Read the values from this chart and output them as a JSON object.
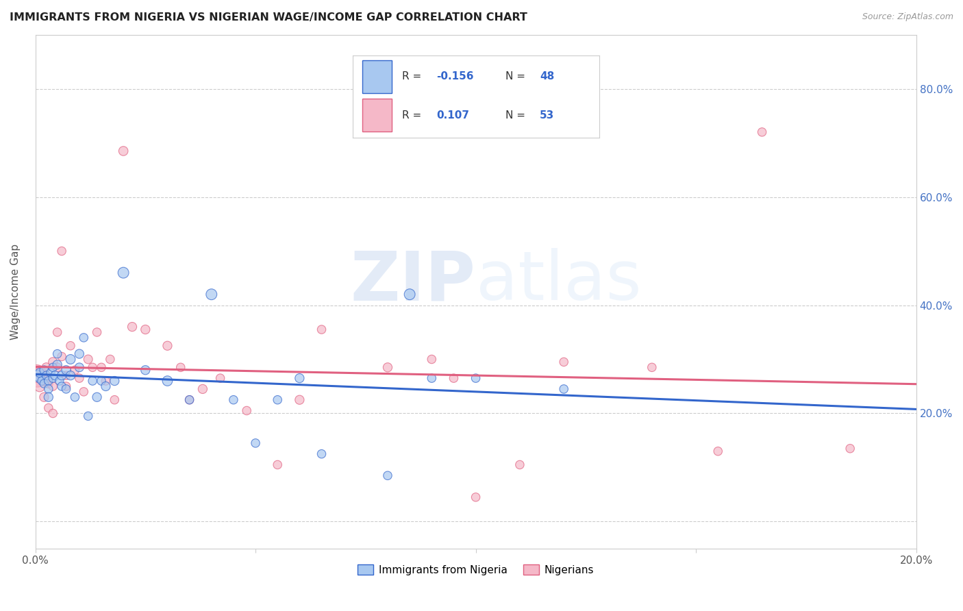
{
  "title": "IMMIGRANTS FROM NIGERIA VS NIGERIAN WAGE/INCOME GAP CORRELATION CHART",
  "source": "Source: ZipAtlas.com",
  "ylabel": "Wage/Income Gap",
  "xmin": 0.0,
  "xmax": 0.2,
  "ymin": -0.05,
  "ymax": 0.9,
  "blue_color": "#A8C8F0",
  "pink_color": "#F5B8C8",
  "blue_line_color": "#3366CC",
  "pink_line_color": "#E06080",
  "legend_label_blue": "Immigrants from Nigeria",
  "legend_label_pink": "Nigerians",
  "blue_x": [
    0.0005,
    0.001,
    0.001,
    0.0015,
    0.002,
    0.002,
    0.0025,
    0.003,
    0.003,
    0.003,
    0.0035,
    0.004,
    0.004,
    0.0045,
    0.005,
    0.005,
    0.0055,
    0.006,
    0.006,
    0.007,
    0.007,
    0.008,
    0.008,
    0.009,
    0.01,
    0.01,
    0.011,
    0.012,
    0.013,
    0.014,
    0.015,
    0.016,
    0.018,
    0.02,
    0.025,
    0.03,
    0.035,
    0.04,
    0.045,
    0.05,
    0.055,
    0.06,
    0.065,
    0.08,
    0.085,
    0.09,
    0.1,
    0.12
  ],
  "blue_y": [
    0.27,
    0.265,
    0.275,
    0.26,
    0.28,
    0.255,
    0.27,
    0.26,
    0.245,
    0.23,
    0.275,
    0.265,
    0.285,
    0.27,
    0.29,
    0.31,
    0.26,
    0.27,
    0.25,
    0.28,
    0.245,
    0.3,
    0.27,
    0.23,
    0.31,
    0.285,
    0.34,
    0.195,
    0.26,
    0.23,
    0.26,
    0.25,
    0.26,
    0.46,
    0.28,
    0.26,
    0.225,
    0.42,
    0.225,
    0.145,
    0.225,
    0.265,
    0.125,
    0.085,
    0.42,
    0.265,
    0.265,
    0.245
  ],
  "blue_sizes": [
    120,
    100,
    90,
    80,
    85,
    80,
    80,
    80,
    80,
    90,
    80,
    80,
    80,
    90,
    90,
    80,
    80,
    90,
    80,
    90,
    80,
    100,
    90,
    80,
    90,
    85,
    80,
    80,
    80,
    90,
    80,
    90,
    90,
    130,
    90,
    110,
    80,
    130,
    80,
    80,
    80,
    90,
    80,
    80,
    130,
    80,
    80,
    80
  ],
  "pink_x": [
    0.0003,
    0.0005,
    0.001,
    0.001,
    0.0015,
    0.002,
    0.002,
    0.0025,
    0.003,
    0.003,
    0.003,
    0.004,
    0.004,
    0.004,
    0.005,
    0.005,
    0.006,
    0.006,
    0.007,
    0.007,
    0.008,
    0.009,
    0.01,
    0.011,
    0.012,
    0.013,
    0.014,
    0.015,
    0.016,
    0.017,
    0.018,
    0.02,
    0.022,
    0.025,
    0.03,
    0.033,
    0.035,
    0.038,
    0.042,
    0.048,
    0.055,
    0.06,
    0.065,
    0.08,
    0.09,
    0.095,
    0.1,
    0.11,
    0.12,
    0.14,
    0.155,
    0.165,
    0.185
  ],
  "pink_y": [
    0.27,
    0.265,
    0.275,
    0.25,
    0.27,
    0.26,
    0.23,
    0.285,
    0.265,
    0.255,
    0.21,
    0.295,
    0.25,
    0.2,
    0.35,
    0.285,
    0.5,
    0.305,
    0.27,
    0.25,
    0.325,
    0.28,
    0.265,
    0.24,
    0.3,
    0.285,
    0.35,
    0.285,
    0.26,
    0.3,
    0.225,
    0.685,
    0.36,
    0.355,
    0.325,
    0.285,
    0.225,
    0.245,
    0.265,
    0.205,
    0.105,
    0.225,
    0.355,
    0.285,
    0.3,
    0.265,
    0.045,
    0.105,
    0.295,
    0.285,
    0.13,
    0.72,
    0.135
  ],
  "pink_sizes": [
    500,
    350,
    150,
    130,
    100,
    100,
    90,
    90,
    90,
    85,
    80,
    90,
    80,
    80,
    80,
    85,
    80,
    80,
    80,
    80,
    80,
    80,
    80,
    80,
    85,
    80,
    80,
    80,
    80,
    80,
    80,
    95,
    90,
    90,
    90,
    80,
    80,
    90,
    80,
    80,
    80,
    90,
    80,
    90,
    80,
    80,
    80,
    80,
    80,
    80,
    80,
    80,
    80
  ],
  "watermark_zip": "ZIP",
  "watermark_atlas": "atlas",
  "grid_color": "#CCCCCC",
  "background_color": "#FFFFFF",
  "right_tick_color": "#4472C4"
}
